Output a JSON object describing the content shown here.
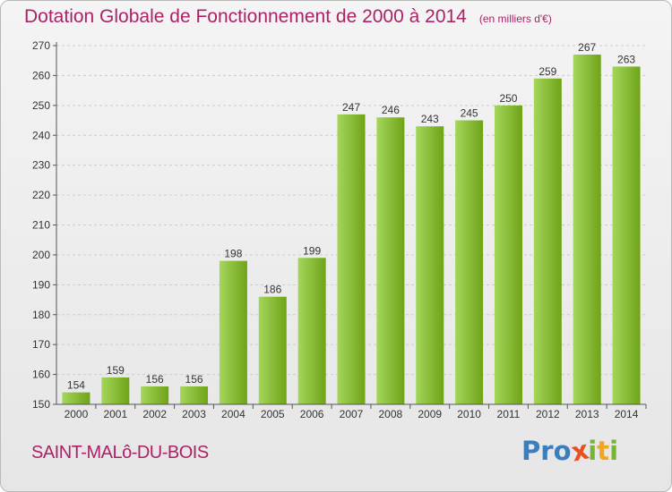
{
  "header": {
    "title": "Dotation Globale de Fonctionnement de 2000 à 2014",
    "unit": "(en milliers d'€)"
  },
  "footer": {
    "town": "SAINT-MALô-DU-BOIS",
    "logo_letters": [
      "P",
      "r",
      "o",
      "x",
      "i",
      "t",
      "i"
    ]
  },
  "colors": {
    "title": "#ad2167",
    "bar_light": "#a4d65a",
    "bar_dark": "#6fa318",
    "grid": "#cccccc",
    "logo": [
      "#3a7ec2",
      "#3a7ec2",
      "#3a7ec2",
      "#e8501f",
      "#77b533",
      "#f2a51d",
      "#77b533"
    ]
  },
  "chart_data": {
    "type": "bar",
    "title": "Dotation Globale de Fonctionnement de 2000 à 2014",
    "subtitle": "(en milliers d'€)",
    "xlabel": "",
    "ylabel": "",
    "categories": [
      "2000",
      "2001",
      "2002",
      "2003",
      "2004",
      "2005",
      "2006",
      "2007",
      "2008",
      "2009",
      "2010",
      "2011",
      "2012",
      "2013",
      "2014"
    ],
    "values": [
      154,
      159,
      156,
      156,
      198,
      186,
      199,
      247,
      246,
      243,
      245,
      250,
      259,
      267,
      263
    ],
    "ylim": [
      150,
      270
    ],
    "yticks": [
      150,
      160,
      170,
      180,
      190,
      200,
      210,
      220,
      230,
      240,
      250,
      260,
      270
    ],
    "grid": true
  }
}
